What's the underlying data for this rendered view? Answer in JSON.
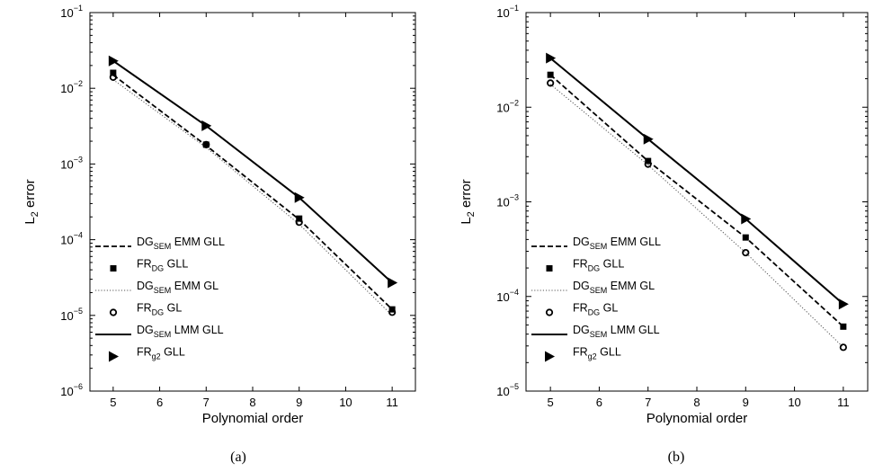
{
  "chart_data": [
    {
      "type": "line",
      "panel_label": "(a)",
      "xlabel": "Polynomial order",
      "ylabel_main": "L",
      "ylabel_sub": "2",
      "ylabel_rest": " error",
      "xlim": [
        4.5,
        11.5
      ],
      "ylim": [
        1e-06,
        0.1
      ],
      "yscale": "log",
      "x_ticks": [
        "5",
        "6",
        "7",
        "8",
        "9",
        "10",
        "11"
      ],
      "y_ticks": [
        {
          "base": "10",
          "exp": "−6"
        },
        {
          "base": "10",
          "exp": "−5"
        },
        {
          "base": "10",
          "exp": "−4"
        },
        {
          "base": "10",
          "exp": "−3"
        },
        {
          "base": "10",
          "exp": "−2"
        },
        {
          "base": "10",
          "exp": "−1"
        }
      ],
      "legend_position": "lower-left",
      "series": [
        {
          "name_main": "DG",
          "name_sub": "SEM",
          "name_rest": " EMM GLL",
          "style": "dashed",
          "x": [
            5,
            7,
            9,
            11
          ],
          "y": [
            0.015,
            0.00175,
            0.000185,
            1.2e-05
          ]
        },
        {
          "name_main": "FR",
          "name_sub": "DG",
          "name_rest": " GLL",
          "style": "square",
          "x": [
            5,
            7,
            9,
            11
          ],
          "y": [
            0.016,
            0.0018,
            0.00019,
            1.2e-05
          ]
        },
        {
          "name_main": "DG",
          "name_sub": "SEM",
          "name_rest": " EMM GL",
          "style": "dotted",
          "x": [
            5,
            7,
            9,
            11
          ],
          "y": [
            0.013,
            0.00165,
            0.00016,
            1e-05
          ]
        },
        {
          "name_main": "FR",
          "name_sub": "DG",
          "name_rest": " GL",
          "style": "circle",
          "x": [
            5,
            7,
            9,
            11
          ],
          "y": [
            0.014,
            0.0018,
            0.00017,
            1.1e-05
          ]
        },
        {
          "name_main": "DG",
          "name_sub": "SEM",
          "name_rest": " LMM  GLL",
          "style": "solid",
          "x": [
            5,
            7,
            9,
            11
          ],
          "y": [
            0.023,
            0.0032,
            0.00036,
            2.7e-05
          ]
        },
        {
          "name_main": "FR",
          "name_sub": "g2",
          "name_rest": " GLL",
          "style": "triangle",
          "x": [
            5,
            7,
            9,
            11
          ],
          "y": [
            0.023,
            0.0032,
            0.00036,
            2.7e-05
          ]
        }
      ]
    },
    {
      "type": "line",
      "panel_label": "(b)",
      "xlabel": "Polynomial order",
      "ylabel_main": "L",
      "ylabel_sub": "2",
      "ylabel_rest": " error",
      "xlim": [
        4.5,
        11.5
      ],
      "ylim": [
        1e-05,
        0.1
      ],
      "yscale": "log",
      "x_ticks": [
        "5",
        "6",
        "7",
        "8",
        "9",
        "10",
        "11"
      ],
      "y_ticks": [
        {
          "base": "10",
          "exp": "−5"
        },
        {
          "base": "10",
          "exp": "−4"
        },
        {
          "base": "10",
          "exp": "−3"
        },
        {
          "base": "10",
          "exp": "−2"
        },
        {
          "base": "10",
          "exp": "−1"
        }
      ],
      "legend_position": "lower-left",
      "series": [
        {
          "name_main": "DG",
          "name_sub": "SEM",
          "name_rest": " EMM GLL",
          "style": "dashed",
          "x": [
            5,
            7,
            9,
            11
          ],
          "y": [
            0.022,
            0.0027,
            0.00042,
            4.8e-05
          ]
        },
        {
          "name_main": "FR",
          "name_sub": "DG",
          "name_rest": " GLL",
          "style": "square",
          "x": [
            5,
            7,
            9,
            11
          ],
          "y": [
            0.022,
            0.0027,
            0.00042,
            4.8e-05
          ]
        },
        {
          "name_main": "DG",
          "name_sub": "SEM",
          "name_rest": " EMM GL",
          "style": "dotted",
          "x": [
            5,
            7,
            9,
            11
          ],
          "y": [
            0.0175,
            0.00245,
            0.00029,
            2.9e-05
          ]
        },
        {
          "name_main": "FR",
          "name_sub": "DG",
          "name_rest": " GL",
          "style": "circle",
          "x": [
            5,
            7,
            9,
            11
          ],
          "y": [
            0.018,
            0.0025,
            0.00029,
            2.9e-05
          ]
        },
        {
          "name_main": "DG",
          "name_sub": "SEM",
          "name_rest": " LMM  GLL",
          "style": "solid",
          "x": [
            5,
            7,
            9,
            11
          ],
          "y": [
            0.033,
            0.0046,
            0.00066,
            8.3e-05
          ]
        },
        {
          "name_main": "FR",
          "name_sub": "g2",
          "name_rest": " GLL",
          "style": "triangle",
          "x": [
            5,
            7,
            9,
            11
          ],
          "y": [
            0.033,
            0.0046,
            0.00066,
            8.3e-05
          ]
        }
      ]
    }
  ]
}
